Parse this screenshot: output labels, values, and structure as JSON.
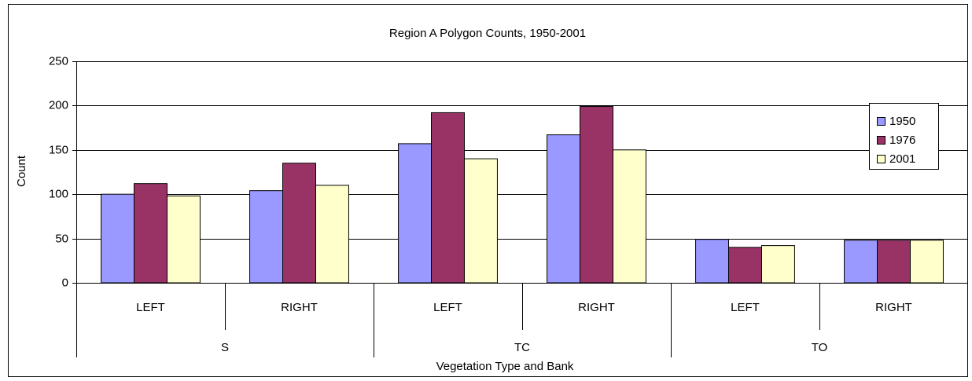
{
  "chart_data": {
    "type": "bar",
    "title": "Region A Polygon Counts, 1950-2001",
    "x_label": "Vegetation Type and Bank",
    "y_label": "Count",
    "groups": [
      {
        "name": "S",
        "categories": [
          "LEFT",
          "RIGHT"
        ]
      },
      {
        "name": "TC",
        "categories": [
          "LEFT",
          "RIGHT"
        ]
      },
      {
        "name": "TO",
        "categories": [
          "LEFT",
          "RIGHT"
        ]
      }
    ],
    "series": [
      {
        "name": "1950",
        "color": "#9999ff",
        "values": [
          100,
          104,
          157,
          167,
          49,
          48
        ]
      },
      {
        "name": "1976",
        "color": "#993366",
        "values": [
          112,
          135,
          192,
          199,
          40,
          48
        ]
      },
      {
        "name": "2001",
        "color": "#ffffcc",
        "values": [
          98,
          110,
          140,
          150,
          42,
          48
        ]
      }
    ],
    "ylim": [
      0,
      250
    ],
    "yticks": [
      0,
      50,
      100,
      150,
      200,
      250
    ],
    "grid": true,
    "legend": "right"
  }
}
